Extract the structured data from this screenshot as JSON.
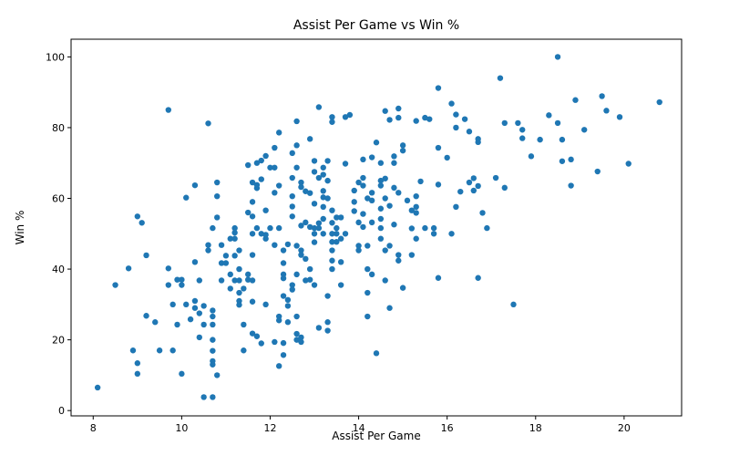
{
  "chart_data": {
    "type": "scatter",
    "title": "Assist Per Game vs Win %",
    "xlabel": "Assist Per Game",
    "ylabel": "Win %",
    "xlim": [
      7.5,
      21.3
    ],
    "ylim": [
      -1.5,
      105
    ],
    "xticks": [
      8,
      10,
      12,
      14,
      16,
      18,
      20
    ],
    "yticks": [
      0,
      20,
      40,
      60,
      80,
      100
    ],
    "grid": false,
    "marker_color": "#1f77b4",
    "points": [
      [
        8.1,
        6.5
      ],
      [
        8.5,
        35.5
      ],
      [
        8.8,
        40.2
      ],
      [
        8.9,
        17.0
      ],
      [
        9.0,
        13.4
      ],
      [
        9.0,
        10.4
      ],
      [
        9.0,
        54.9
      ],
      [
        9.1,
        53.1
      ],
      [
        9.2,
        26.8
      ],
      [
        9.2,
        43.9
      ],
      [
        9.4,
        25.0
      ],
      [
        9.5,
        17.0
      ],
      [
        9.7,
        35.5
      ],
      [
        9.7,
        40.2
      ],
      [
        9.7,
        85.0
      ],
      [
        9.8,
        30.0
      ],
      [
        9.8,
        17.0
      ],
      [
        9.9,
        24.3
      ],
      [
        9.9,
        37.0
      ],
      [
        10.0,
        37.0
      ],
      [
        10.0,
        35.5
      ],
      [
        10.0,
        10.4
      ],
      [
        10.1,
        30.0
      ],
      [
        10.1,
        60.2
      ],
      [
        10.2,
        25.8
      ],
      [
        10.3,
        29.0
      ],
      [
        10.3,
        31.0
      ],
      [
        10.3,
        42.0
      ],
      [
        10.3,
        63.7
      ],
      [
        10.4,
        27.5
      ],
      [
        10.4,
        20.7
      ],
      [
        10.4,
        36.8
      ],
      [
        10.5,
        3.8
      ],
      [
        10.5,
        24.3
      ],
      [
        10.5,
        29.6
      ],
      [
        10.6,
        46.8
      ],
      [
        10.6,
        45.3
      ],
      [
        10.6,
        81.2
      ],
      [
        10.7,
        28.3
      ],
      [
        10.7,
        26.6
      ],
      [
        10.7,
        24.3
      ],
      [
        10.7,
        20.0
      ],
      [
        10.7,
        16.9
      ],
      [
        10.7,
        14.0
      ],
      [
        10.7,
        13.0
      ],
      [
        10.7,
        3.8
      ],
      [
        10.7,
        51.6
      ],
      [
        10.8,
        10.0
      ],
      [
        10.8,
        54.6
      ],
      [
        10.8,
        60.6
      ],
      [
        10.8,
        64.5
      ],
      [
        10.9,
        46.8
      ],
      [
        10.9,
        41.7
      ],
      [
        10.9,
        36.8
      ],
      [
        11.0,
        43.8
      ],
      [
        11.0,
        41.7
      ],
      [
        11.1,
        34.5
      ],
      [
        11.1,
        38.5
      ],
      [
        11.1,
        48.6
      ],
      [
        11.2,
        43.8
      ],
      [
        11.2,
        48.6
      ],
      [
        11.2,
        50.3
      ],
      [
        11.2,
        51.6
      ],
      [
        11.2,
        36.8
      ],
      [
        11.3,
        29.9
      ],
      [
        11.3,
        31.0
      ],
      [
        11.3,
        33.3
      ],
      [
        11.3,
        36.8
      ],
      [
        11.3,
        40.0
      ],
      [
        11.3,
        45.3
      ],
      [
        11.4,
        17.0
      ],
      [
        11.4,
        24.3
      ],
      [
        11.4,
        34.5
      ],
      [
        11.5,
        37.0
      ],
      [
        11.5,
        38.5
      ],
      [
        11.5,
        56.0
      ],
      [
        11.5,
        69.4
      ],
      [
        11.6,
        30.8
      ],
      [
        11.6,
        36.8
      ],
      [
        11.6,
        44.0
      ],
      [
        11.6,
        50.0
      ],
      [
        11.6,
        54.9
      ],
      [
        11.6,
        59.0
      ],
      [
        11.6,
        64.5
      ],
      [
        11.6,
        21.8
      ],
      [
        11.7,
        21.0
      ],
      [
        11.7,
        51.6
      ],
      [
        11.7,
        62.9
      ],
      [
        11.7,
        63.8
      ],
      [
        11.7,
        70.0
      ],
      [
        11.8,
        19.0
      ],
      [
        11.8,
        50.0
      ],
      [
        11.8,
        65.4
      ],
      [
        11.8,
        70.7
      ],
      [
        11.9,
        30.0
      ],
      [
        11.9,
        48.6
      ],
      [
        11.9,
        49.7
      ],
      [
        11.9,
        56.6
      ],
      [
        11.9,
        72.0
      ],
      [
        12.0,
        51.6
      ],
      [
        12.0,
        68.7
      ],
      [
        12.1,
        46.8
      ],
      [
        12.1,
        74.3
      ],
      [
        12.1,
        68.7
      ],
      [
        12.1,
        19.4
      ],
      [
        12.1,
        61.6
      ],
      [
        12.2,
        51.6
      ],
      [
        12.2,
        63.6
      ],
      [
        12.2,
        78.6
      ],
      [
        12.2,
        26.6
      ],
      [
        12.2,
        25.5
      ],
      [
        12.2,
        12.6
      ],
      [
        12.3,
        45.3
      ],
      [
        12.3,
        41.7
      ],
      [
        12.3,
        38.5
      ],
      [
        12.3,
        37.4
      ],
      [
        12.3,
        32.4
      ],
      [
        12.3,
        19.1
      ],
      [
        12.3,
        15.7
      ],
      [
        12.4,
        31.3
      ],
      [
        12.4,
        25.0
      ],
      [
        12.4,
        29.6
      ],
      [
        12.4,
        47.0
      ],
      [
        12.5,
        35.5
      ],
      [
        12.5,
        34.2
      ],
      [
        12.5,
        54.9
      ],
      [
        12.5,
        57.7
      ],
      [
        12.5,
        60.6
      ],
      [
        12.5,
        65.8
      ],
      [
        12.5,
        72.8
      ],
      [
        12.6,
        81.8
      ],
      [
        12.6,
        75.0
      ],
      [
        12.6,
        68.7
      ],
      [
        12.6,
        46.6
      ],
      [
        12.6,
        38.5
      ],
      [
        12.6,
        26.6
      ],
      [
        12.6,
        21.7
      ],
      [
        12.6,
        20.0
      ],
      [
        12.7,
        19.4
      ],
      [
        12.7,
        20.7
      ],
      [
        12.7,
        44.0
      ],
      [
        12.7,
        45.3
      ],
      [
        12.7,
        52.3
      ],
      [
        12.7,
        63.2
      ],
      [
        12.7,
        64.5
      ],
      [
        12.8,
        53.2
      ],
      [
        12.8,
        62.0
      ],
      [
        12.8,
        36.8
      ],
      [
        12.8,
        42.9
      ],
      [
        12.9,
        76.8
      ],
      [
        12.9,
        61.5
      ],
      [
        12.9,
        51.9
      ],
      [
        12.9,
        40.0
      ],
      [
        12.9,
        37.0
      ],
      [
        13.0,
        35.5
      ],
      [
        13.0,
        47.6
      ],
      [
        13.0,
        50.0
      ],
      [
        13.0,
        51.6
      ],
      [
        13.0,
        58.5
      ],
      [
        13.0,
        67.5
      ],
      [
        13.0,
        70.6
      ],
      [
        13.1,
        23.4
      ],
      [
        13.1,
        51.6
      ],
      [
        13.1,
        53.0
      ],
      [
        13.1,
        65.8
      ],
      [
        13.1,
        85.8
      ],
      [
        13.2,
        57.6
      ],
      [
        13.2,
        60.3
      ],
      [
        13.2,
        62.1
      ],
      [
        13.2,
        66.7
      ],
      [
        13.2,
        68.7
      ],
      [
        13.2,
        54.2
      ],
      [
        13.2,
        50.0
      ],
      [
        13.3,
        60.0
      ],
      [
        13.3,
        65.0
      ],
      [
        13.3,
        70.6
      ],
      [
        13.3,
        25.0
      ],
      [
        13.3,
        32.4
      ],
      [
        13.3,
        22.6
      ],
      [
        13.4,
        40.0
      ],
      [
        13.4,
        42.4
      ],
      [
        13.4,
        45.3
      ],
      [
        13.4,
        47.7
      ],
      [
        13.4,
        50.0
      ],
      [
        13.4,
        53.1
      ],
      [
        13.4,
        56.6
      ],
      [
        13.4,
        81.6
      ],
      [
        13.4,
        83.0
      ],
      [
        13.5,
        50.0
      ],
      [
        13.5,
        51.6
      ],
      [
        13.5,
        54.6
      ],
      [
        13.5,
        47.7
      ],
      [
        13.6,
        48.6
      ],
      [
        13.6,
        54.6
      ],
      [
        13.6,
        42.0
      ],
      [
        13.6,
        35.5
      ],
      [
        13.7,
        50.0
      ],
      [
        13.7,
        69.8
      ],
      [
        13.7,
        83.0
      ],
      [
        13.8,
        83.6
      ],
      [
        13.9,
        59.0
      ],
      [
        13.9,
        62.2
      ],
      [
        13.9,
        56.4
      ],
      [
        14.0,
        64.5
      ],
      [
        14.0,
        46.6
      ],
      [
        14.0,
        45.3
      ],
      [
        14.0,
        53.2
      ],
      [
        14.1,
        65.8
      ],
      [
        14.1,
        71.0
      ],
      [
        14.1,
        63.6
      ],
      [
        14.1,
        55.6
      ],
      [
        14.1,
        51.9
      ],
      [
        14.2,
        60.0
      ],
      [
        14.2,
        40.0
      ],
      [
        14.2,
        33.3
      ],
      [
        14.2,
        26.6
      ],
      [
        14.2,
        46.6
      ],
      [
        14.3,
        38.5
      ],
      [
        14.3,
        53.2
      ],
      [
        14.3,
        59.4
      ],
      [
        14.3,
        61.6
      ],
      [
        14.3,
        71.6
      ],
      [
        14.4,
        75.8
      ],
      [
        14.4,
        16.2
      ],
      [
        14.5,
        70.0
      ],
      [
        14.5,
        65.0
      ],
      [
        14.5,
        63.6
      ],
      [
        14.5,
        57.1
      ],
      [
        14.5,
        54.2
      ],
      [
        14.5,
        51.6
      ],
      [
        14.5,
        48.6
      ],
      [
        14.6,
        36.8
      ],
      [
        14.6,
        45.3
      ],
      [
        14.6,
        60.0
      ],
      [
        14.6,
        65.6
      ],
      [
        14.6,
        84.7
      ],
      [
        14.7,
        82.2
      ],
      [
        14.7,
        46.6
      ],
      [
        14.7,
        29.0
      ],
      [
        14.7,
        57.9
      ],
      [
        14.8,
        52.6
      ],
      [
        14.8,
        63.0
      ],
      [
        14.8,
        70.0
      ],
      [
        14.8,
        71.9
      ],
      [
        14.9,
        82.8
      ],
      [
        14.9,
        85.4
      ],
      [
        14.9,
        61.6
      ],
      [
        14.9,
        44.0
      ],
      [
        14.9,
        42.4
      ],
      [
        15.0,
        34.7
      ],
      [
        15.0,
        73.5
      ],
      [
        15.0,
        75.0
      ],
      [
        15.1,
        59.4
      ],
      [
        15.2,
        56.6
      ],
      [
        15.2,
        51.5
      ],
      [
        15.2,
        44.0
      ],
      [
        15.3,
        81.9
      ],
      [
        15.3,
        60.6
      ],
      [
        15.3,
        57.6
      ],
      [
        15.3,
        55.9
      ],
      [
        15.3,
        48.6
      ],
      [
        15.4,
        64.8
      ],
      [
        15.5,
        82.8
      ],
      [
        15.5,
        51.6
      ],
      [
        15.6,
        82.4
      ],
      [
        15.7,
        51.6
      ],
      [
        15.7,
        50.0
      ],
      [
        15.8,
        37.5
      ],
      [
        15.8,
        91.2
      ],
      [
        15.8,
        74.3
      ],
      [
        15.8,
        63.9
      ],
      [
        16.0,
        71.5
      ],
      [
        16.1,
        86.8
      ],
      [
        16.1,
        50.0
      ],
      [
        16.2,
        80.0
      ],
      [
        16.2,
        83.7
      ],
      [
        16.2,
        57.6
      ],
      [
        16.3,
        61.9
      ],
      [
        16.4,
        82.4
      ],
      [
        16.5,
        78.9
      ],
      [
        16.5,
        64.5
      ],
      [
        16.6,
        62.2
      ],
      [
        16.6,
        65.7
      ],
      [
        16.7,
        63.5
      ],
      [
        16.7,
        75.9
      ],
      [
        16.7,
        76.8
      ],
      [
        16.7,
        37.5
      ],
      [
        16.8,
        55.9
      ],
      [
        16.9,
        51.6
      ],
      [
        17.1,
        65.8
      ],
      [
        17.2,
        94.0
      ],
      [
        17.3,
        81.3
      ],
      [
        17.3,
        63.0
      ],
      [
        17.5,
        30.0
      ],
      [
        17.6,
        81.3
      ],
      [
        17.7,
        79.4
      ],
      [
        17.7,
        77.0
      ],
      [
        17.9,
        71.9
      ],
      [
        18.1,
        76.6
      ],
      [
        18.3,
        83.5
      ],
      [
        18.5,
        100.0
      ],
      [
        18.5,
        81.3
      ],
      [
        18.6,
        76.6
      ],
      [
        18.6,
        70.5
      ],
      [
        18.8,
        71.0
      ],
      [
        18.8,
        63.6
      ],
      [
        18.9,
        87.8
      ],
      [
        19.1,
        79.4
      ],
      [
        19.4,
        67.6
      ],
      [
        19.5,
        88.9
      ],
      [
        19.6,
        84.8
      ],
      [
        19.9,
        83.0
      ],
      [
        20.1,
        69.8
      ],
      [
        20.8,
        87.2
      ]
    ]
  }
}
